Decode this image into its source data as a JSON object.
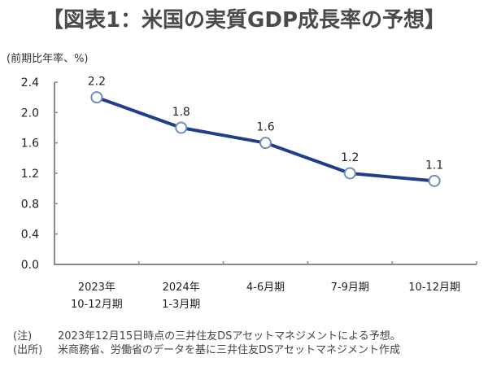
{
  "title": "【図表1：米国の実質GDP成長率の予想】",
  "colors": {
    "line": "#1f3f8a",
    "marker_stroke": "#6f8fb5",
    "marker_fill": "#ffffff",
    "axis": "#8a8a8a",
    "title": "#4a4a4a"
  },
  "notes": [
    {
      "tag": "(注)",
      "text": "2023年12月15日時点の三井住友DSアセットマネジメントによる予想。"
    },
    {
      "tag": "(出所)",
      "text": "米商務省、労働省のデータを基に三井住友DSアセットマネジメント作成"
    }
  ],
  "chart_data": {
    "type": "line",
    "title": "【図表1：米国の実質GDP成長率の予想】",
    "ylabel": "(前期比年率、%)",
    "xlabel": "",
    "categories": [
      [
        "2023年",
        "10-12月期"
      ],
      [
        "2024年",
        "1-3月期"
      ],
      [
        "4-6月期"
      ],
      [
        "7-9月期"
      ],
      [
        "10-12月期"
      ]
    ],
    "series": [
      {
        "name": "実質GDP成長率",
        "values": [
          2.2,
          1.8,
          1.6,
          1.2,
          1.1
        ]
      }
    ],
    "data_labels": [
      "2.2",
      "1.8",
      "1.6",
      "1.2",
      "1.1"
    ],
    "ylim": [
      0.0,
      2.4
    ],
    "yticks": [
      0.0,
      0.4,
      0.8,
      1.2,
      1.6,
      2.0,
      2.4
    ],
    "ytick_labels": [
      "0.0",
      "0.4",
      "0.8",
      "1.2",
      "1.6",
      "2.0",
      "2.4"
    ],
    "grid": false,
    "legend": "none"
  }
}
